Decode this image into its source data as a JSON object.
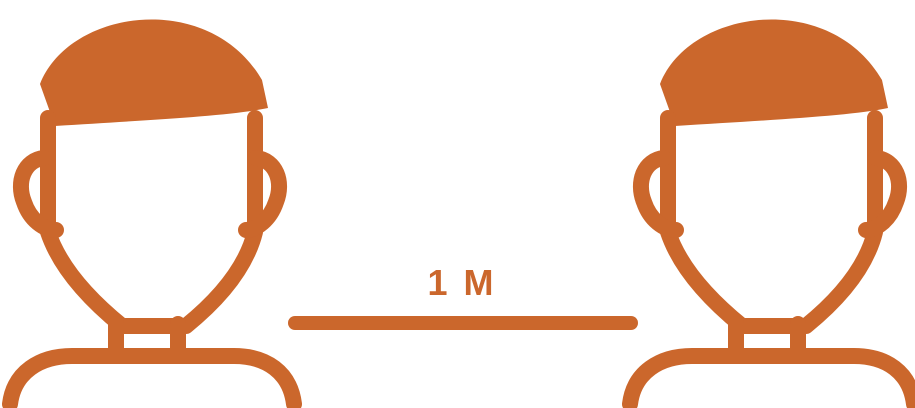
{
  "colors": {
    "accent": "#CB672C",
    "background": "#FFFFFF"
  },
  "distance": {
    "label": "1 M"
  },
  "icons": {
    "left": "person-icon",
    "right": "person-icon"
  }
}
